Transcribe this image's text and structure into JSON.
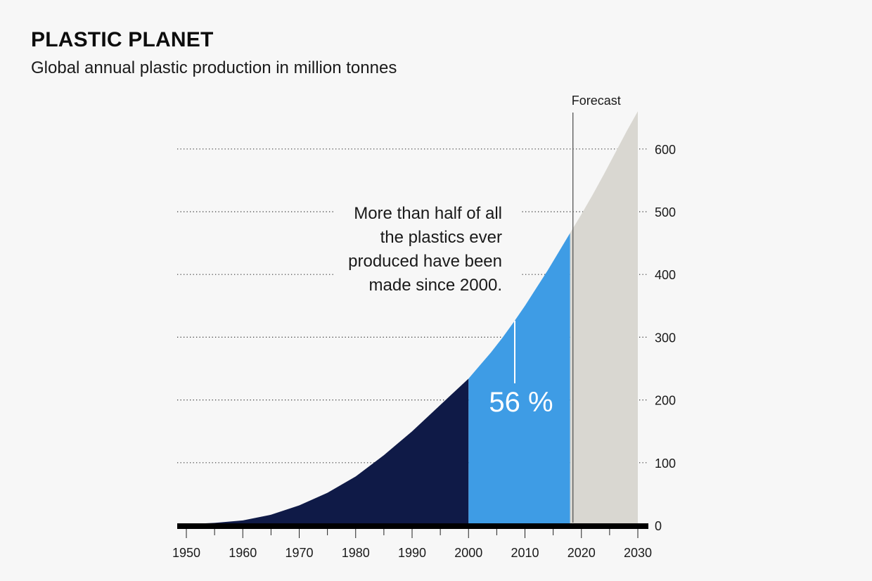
{
  "title": "PLASTIC PLANET",
  "subtitle": "Global annual plastic production in million tonnes",
  "chart_data": {
    "type": "area",
    "title": "PLASTIC PLANET",
    "subtitle": "Global annual plastic production in million tonnes",
    "xlabel": "",
    "ylabel": "",
    "xlim": [
      1950,
      2030
    ],
    "ylim": [
      0,
      600
    ],
    "x_ticks": [
      1950,
      1960,
      1970,
      1980,
      1990,
      2000,
      2010,
      2020,
      2030
    ],
    "y_ticks": [
      0,
      100,
      200,
      300,
      400,
      500,
      600
    ],
    "y_axis_position": "right",
    "grid": "horizontal dotted",
    "series": [
      {
        "x": [
          1950,
          1955,
          1960,
          1965,
          1970,
          1975,
          1980,
          1985,
          1990,
          1995,
          2000
        ],
        "values": [
          2,
          4,
          8,
          17,
          32,
          52,
          78,
          112,
          150,
          192,
          234
        ],
        "color": "#0f1a47"
      },
      {
        "x": [
          2000,
          2002,
          2004,
          2006,
          2008,
          2010,
          2012,
          2014,
          2016,
          2018
        ],
        "values": [
          234,
          255,
          276,
          299,
          324,
          350,
          378,
          406,
          436,
          466
        ],
        "color": "#3e9ce5"
      },
      {
        "x": [
          2018,
          2020,
          2022,
          2024,
          2026,
          2028,
          2030
        ],
        "values": [
          466,
          496,
          527,
          560,
          594,
          628,
          660
        ],
        "color": "#d9d7d1"
      }
    ],
    "forecast_start": 2018.5,
    "forecast_label": "Forecast",
    "share_label": "56 %",
    "annotation_lines": [
      "More than half of all",
      "the plastics ever",
      "produced have been",
      "made since 2000."
    ]
  }
}
